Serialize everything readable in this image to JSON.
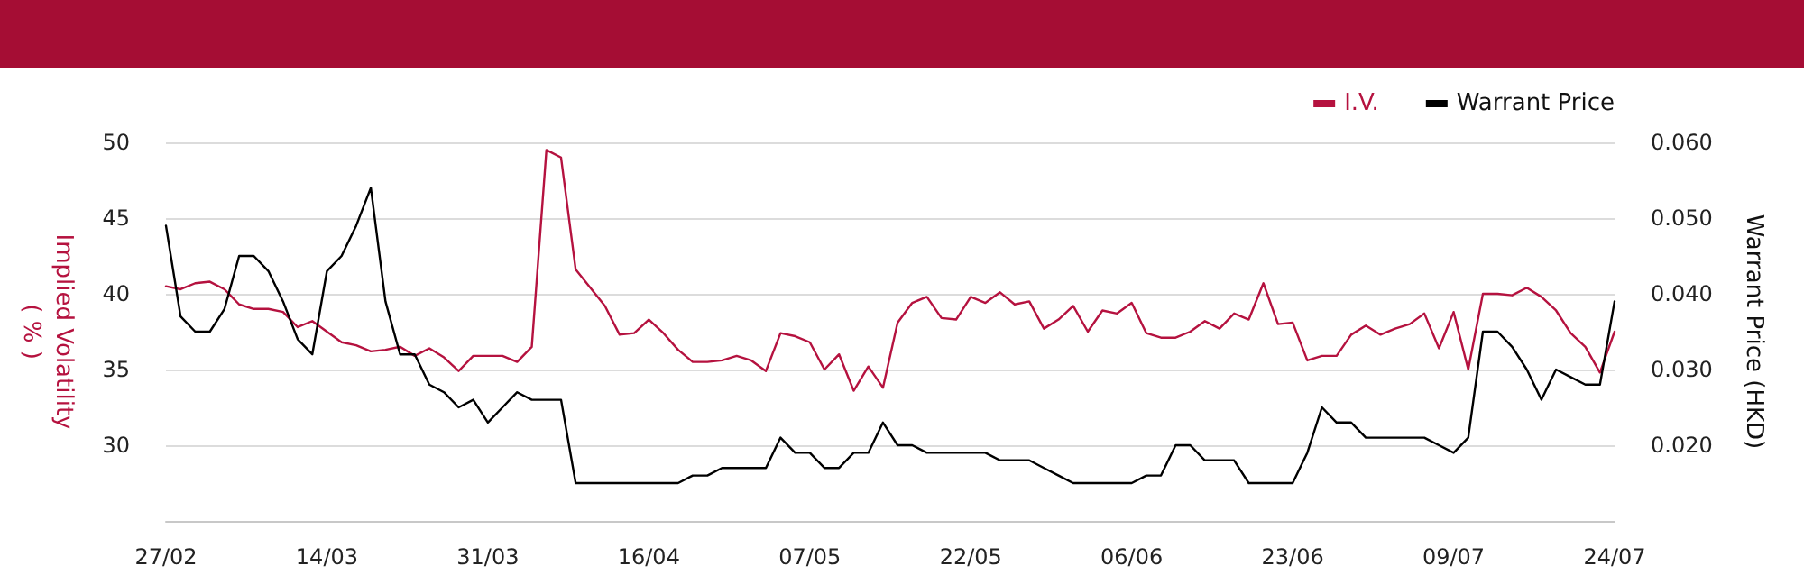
{
  "chart_data": {
    "type": "line",
    "categories": [
      "27/02",
      null,
      null,
      null,
      null,
      null,
      null,
      null,
      null,
      null,
      null,
      "14/03",
      null,
      null,
      null,
      null,
      null,
      null,
      null,
      null,
      null,
      null,
      "31/03",
      null,
      null,
      null,
      null,
      null,
      null,
      null,
      null,
      null,
      null,
      "16/04",
      null,
      null,
      null,
      null,
      null,
      null,
      null,
      null,
      null,
      null,
      "07/05",
      null,
      null,
      null,
      null,
      null,
      null,
      null,
      null,
      null,
      null,
      "22/05",
      null,
      null,
      null,
      null,
      null,
      null,
      null,
      null,
      null,
      null,
      "06/06",
      null,
      null,
      null,
      null,
      null,
      null,
      null,
      null,
      null,
      null,
      "23/06",
      null,
      null,
      null,
      null,
      null,
      null,
      null,
      null,
      null,
      null,
      "09/07",
      null,
      null,
      null,
      null,
      null,
      null,
      null,
      null,
      null,
      null,
      "24/07"
    ],
    "series": [
      {
        "name": "I.V.",
        "color": "#b5123f",
        "values": [
          40.5,
          40.3,
          40.7,
          40.8,
          40.3,
          39.3,
          39.0,
          39.0,
          38.8,
          37.8,
          38.2,
          37.5,
          36.8,
          36.6,
          36.2,
          36.3,
          36.5,
          35.9,
          36.4,
          35.8,
          34.9,
          35.9,
          35.9,
          35.9,
          35.5,
          36.5,
          49.5,
          49.0,
          41.6,
          40.4,
          39.2,
          37.3,
          37.4,
          38.3,
          37.4,
          36.3,
          35.5,
          35.5,
          35.6,
          35.9,
          35.6,
          34.9,
          37.4,
          37.2,
          36.8,
          35.0,
          36.0,
          33.6,
          35.2,
          33.8,
          38.1,
          39.4,
          39.8,
          38.4,
          38.3,
          39.8,
          39.4,
          40.1,
          39.3,
          39.5,
          37.7,
          38.3,
          39.2,
          37.5,
          38.9,
          38.7,
          39.4,
          37.4,
          37.1,
          37.1,
          37.5,
          38.2,
          37.7,
          38.7,
          38.3,
          40.7,
          38.0,
          38.1,
          35.6,
          35.9,
          35.9,
          37.3,
          37.9,
          37.3,
          37.7,
          38.0,
          38.7,
          36.4,
          38.8,
          35.0,
          40.0,
          40.0,
          39.9,
          40.4,
          39.8,
          38.9,
          37.4,
          36.5,
          34.8,
          37.5
        ]
      },
      {
        "name": "Warrant Price",
        "color": "#000000",
        "axis": "y2",
        "values": [
          0.049,
          0.037,
          0.035,
          0.035,
          0.038,
          0.045,
          0.045,
          0.043,
          0.039,
          0.034,
          0.032,
          0.043,
          0.045,
          0.049,
          0.054,
          0.039,
          0.032,
          0.032,
          0.028,
          0.027,
          0.025,
          0.026,
          0.023,
          0.025,
          0.027,
          0.026,
          0.026,
          0.026,
          0.015,
          0.015,
          0.015,
          0.015,
          0.015,
          0.015,
          0.015,
          0.015,
          0.016,
          0.016,
          0.017,
          0.017,
          0.017,
          0.017,
          0.021,
          0.019,
          0.019,
          0.017,
          0.017,
          0.019,
          0.019,
          0.023,
          0.02,
          0.02,
          0.019,
          0.019,
          0.019,
          0.019,
          0.019,
          0.018,
          0.018,
          0.018,
          0.017,
          0.016,
          0.015,
          0.015,
          0.015,
          0.015,
          0.015,
          0.016,
          0.016,
          0.02,
          0.02,
          0.018,
          0.018,
          0.018,
          0.015,
          0.015,
          0.015,
          0.015,
          0.019,
          0.025,
          0.023,
          0.023,
          0.021,
          0.021,
          0.021,
          0.021,
          0.021,
          0.02,
          0.019,
          0.021,
          0.035,
          0.035,
          0.033,
          0.03,
          0.026,
          0.03,
          0.029,
          0.028,
          0.028,
          0.039
        ]
      }
    ],
    "ylabel": "Implied Volatility\n( % )",
    "y2label": "Warrant Price (HKD)",
    "ylim": [
      25,
      50
    ],
    "yticks": [
      30,
      35,
      40,
      45,
      50
    ],
    "y2lim": [
      0.01,
      0.06
    ],
    "y2ticks": [
      {
        "value": 0.02,
        "label": "0.020"
      },
      {
        "value": 0.03,
        "label": "0.030"
      },
      {
        "value": 0.04,
        "label": "0.040"
      },
      {
        "value": 0.05,
        "label": "0.050"
      },
      {
        "value": 0.06,
        "label": "0.060"
      }
    ],
    "grid": "y",
    "legend": "top right",
    "marker": "none",
    "line_style": "solid"
  }
}
